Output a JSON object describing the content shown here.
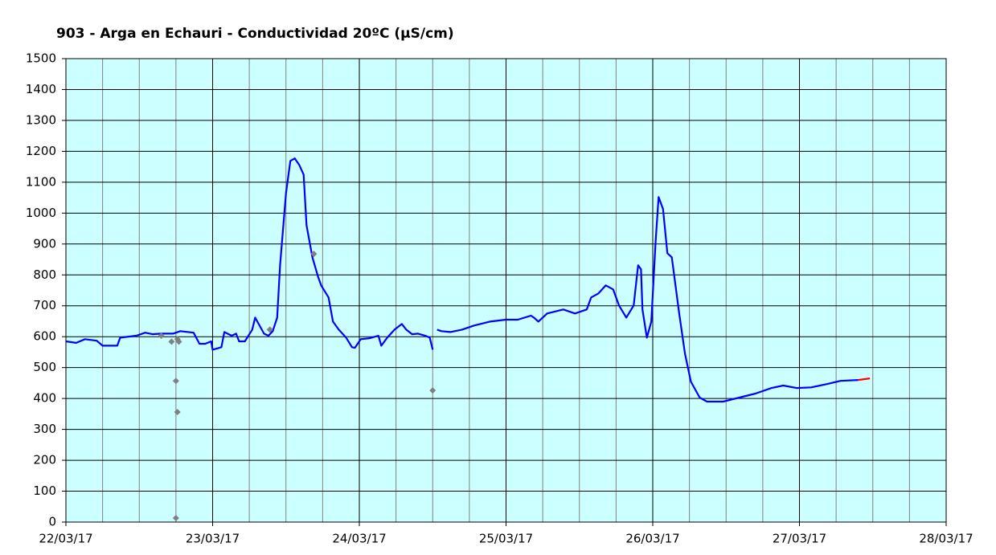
{
  "chart_data": {
    "type": "line",
    "title": "903 - Arga en Echauri - Conductividad 20ºC (µS/cm)",
    "xlim": [
      0,
      6
    ],
    "xticks": [
      {
        "value": 0,
        "label": "22/03/17"
      },
      {
        "value": 1,
        "label": "23/03/17"
      },
      {
        "value": 2,
        "label": "24/03/17"
      },
      {
        "value": 3,
        "label": "25/03/17"
      },
      {
        "value": 4,
        "label": "26/03/17"
      },
      {
        "value": 5,
        "label": "27/03/17"
      },
      {
        "value": 6,
        "label": "28/03/17"
      }
    ],
    "ylim": [
      0,
      1500
    ],
    "yticks": [
      0,
      100,
      200,
      300,
      400,
      500,
      600,
      700,
      800,
      900,
      1000,
      1100,
      1200,
      1300,
      1400,
      1500
    ],
    "grid": true,
    "background": "#ccffff",
    "series": [
      {
        "color": "#0000ff",
        "x": [
          0,
          0.07,
          0.13,
          0.21,
          0.25,
          0.35,
          0.37,
          0.48,
          0.54,
          0.59,
          0.65,
          0.73,
          0.78,
          0.87,
          0.91,
          0.95,
          0.99,
          1.0,
          1.06,
          1.08,
          1.13,
          1.16,
          1.18,
          1.22,
          1.27,
          1.29,
          1.32,
          1.35,
          1.38,
          1.41,
          1.44,
          1.46,
          1.5,
          1.53,
          1.56,
          1.59,
          1.62,
          1.64,
          1.68,
          1.72,
          1.74,
          1.79,
          1.82,
          1.86,
          1.91,
          1.95,
          1.97,
          2.01,
          2.07,
          2.13,
          2.15,
          2.19,
          2.24,
          2.29,
          2.32,
          2.36,
          2.4,
          2.45,
          2.48,
          2.5,
          2.51,
          2.53,
          2.56,
          2.62,
          2.7,
          2.78,
          2.89,
          3.0,
          3.08,
          3.17,
          3.19,
          3.22,
          3.28,
          3.39,
          3.47,
          3.55,
          3.58,
          3.63,
          3.68,
          3.73,
          3.77,
          3.82,
          3.87,
          3.9,
          3.92,
          3.93,
          3.96,
          3.99,
          4.02,
          4.04,
          4.07,
          4.1,
          4.13,
          4.18,
          4.22,
          4.26,
          4.32,
          4.37,
          4.48,
          4.59,
          4.7,
          4.81,
          4.89,
          4.98,
          5.08,
          5.19,
          5.28,
          5.4
        ],
        "values": [
          585,
          580,
          592,
          587,
          571,
          571,
          597,
          603,
          613,
          608,
          610,
          610,
          618,
          613,
          577,
          577,
          585,
          558,
          566,
          615,
          603,
          610,
          585,
          585,
          623,
          662,
          636,
          610,
          603,
          618,
          662,
          831,
          1065,
          1169,
          1177,
          1156,
          1125,
          961,
          857,
          792,
          766,
          727,
          649,
          623,
          597,
          566,
          564,
          592,
          595,
          603,
          571,
          597,
          623,
          641,
          623,
          608,
          610,
          603,
          597,
          558,
          null,
          623,
          618,
          615,
          623,
          636,
          649,
          655,
          655,
          668,
          662,
          649,
          675,
          688,
          675,
          688,
          727,
          740,
          766,
          753,
          701,
          662,
          701,
          831,
          818,
          688,
          597,
          649,
          909,
          1052,
          1013,
          870,
          857,
          675,
          545,
          455,
          403,
          390,
          390,
          403,
          416,
          434,
          442,
          434,
          436,
          447,
          457,
          460
        ]
      },
      {
        "color": "#ff0000",
        "x": [
          5.4,
          5.48
        ],
        "values": [
          460,
          465
        ]
      },
      {
        "color": "#808080",
        "type": "scatter",
        "x": [
          0.65,
          0.72,
          0.76,
          0.77,
          0.75,
          0.76,
          0.75,
          1.39,
          1.69,
          2.5
        ],
        "values": [
          603,
          584,
          592,
          584,
          457,
          356,
          13,
          623,
          868,
          426
        ]
      }
    ]
  }
}
